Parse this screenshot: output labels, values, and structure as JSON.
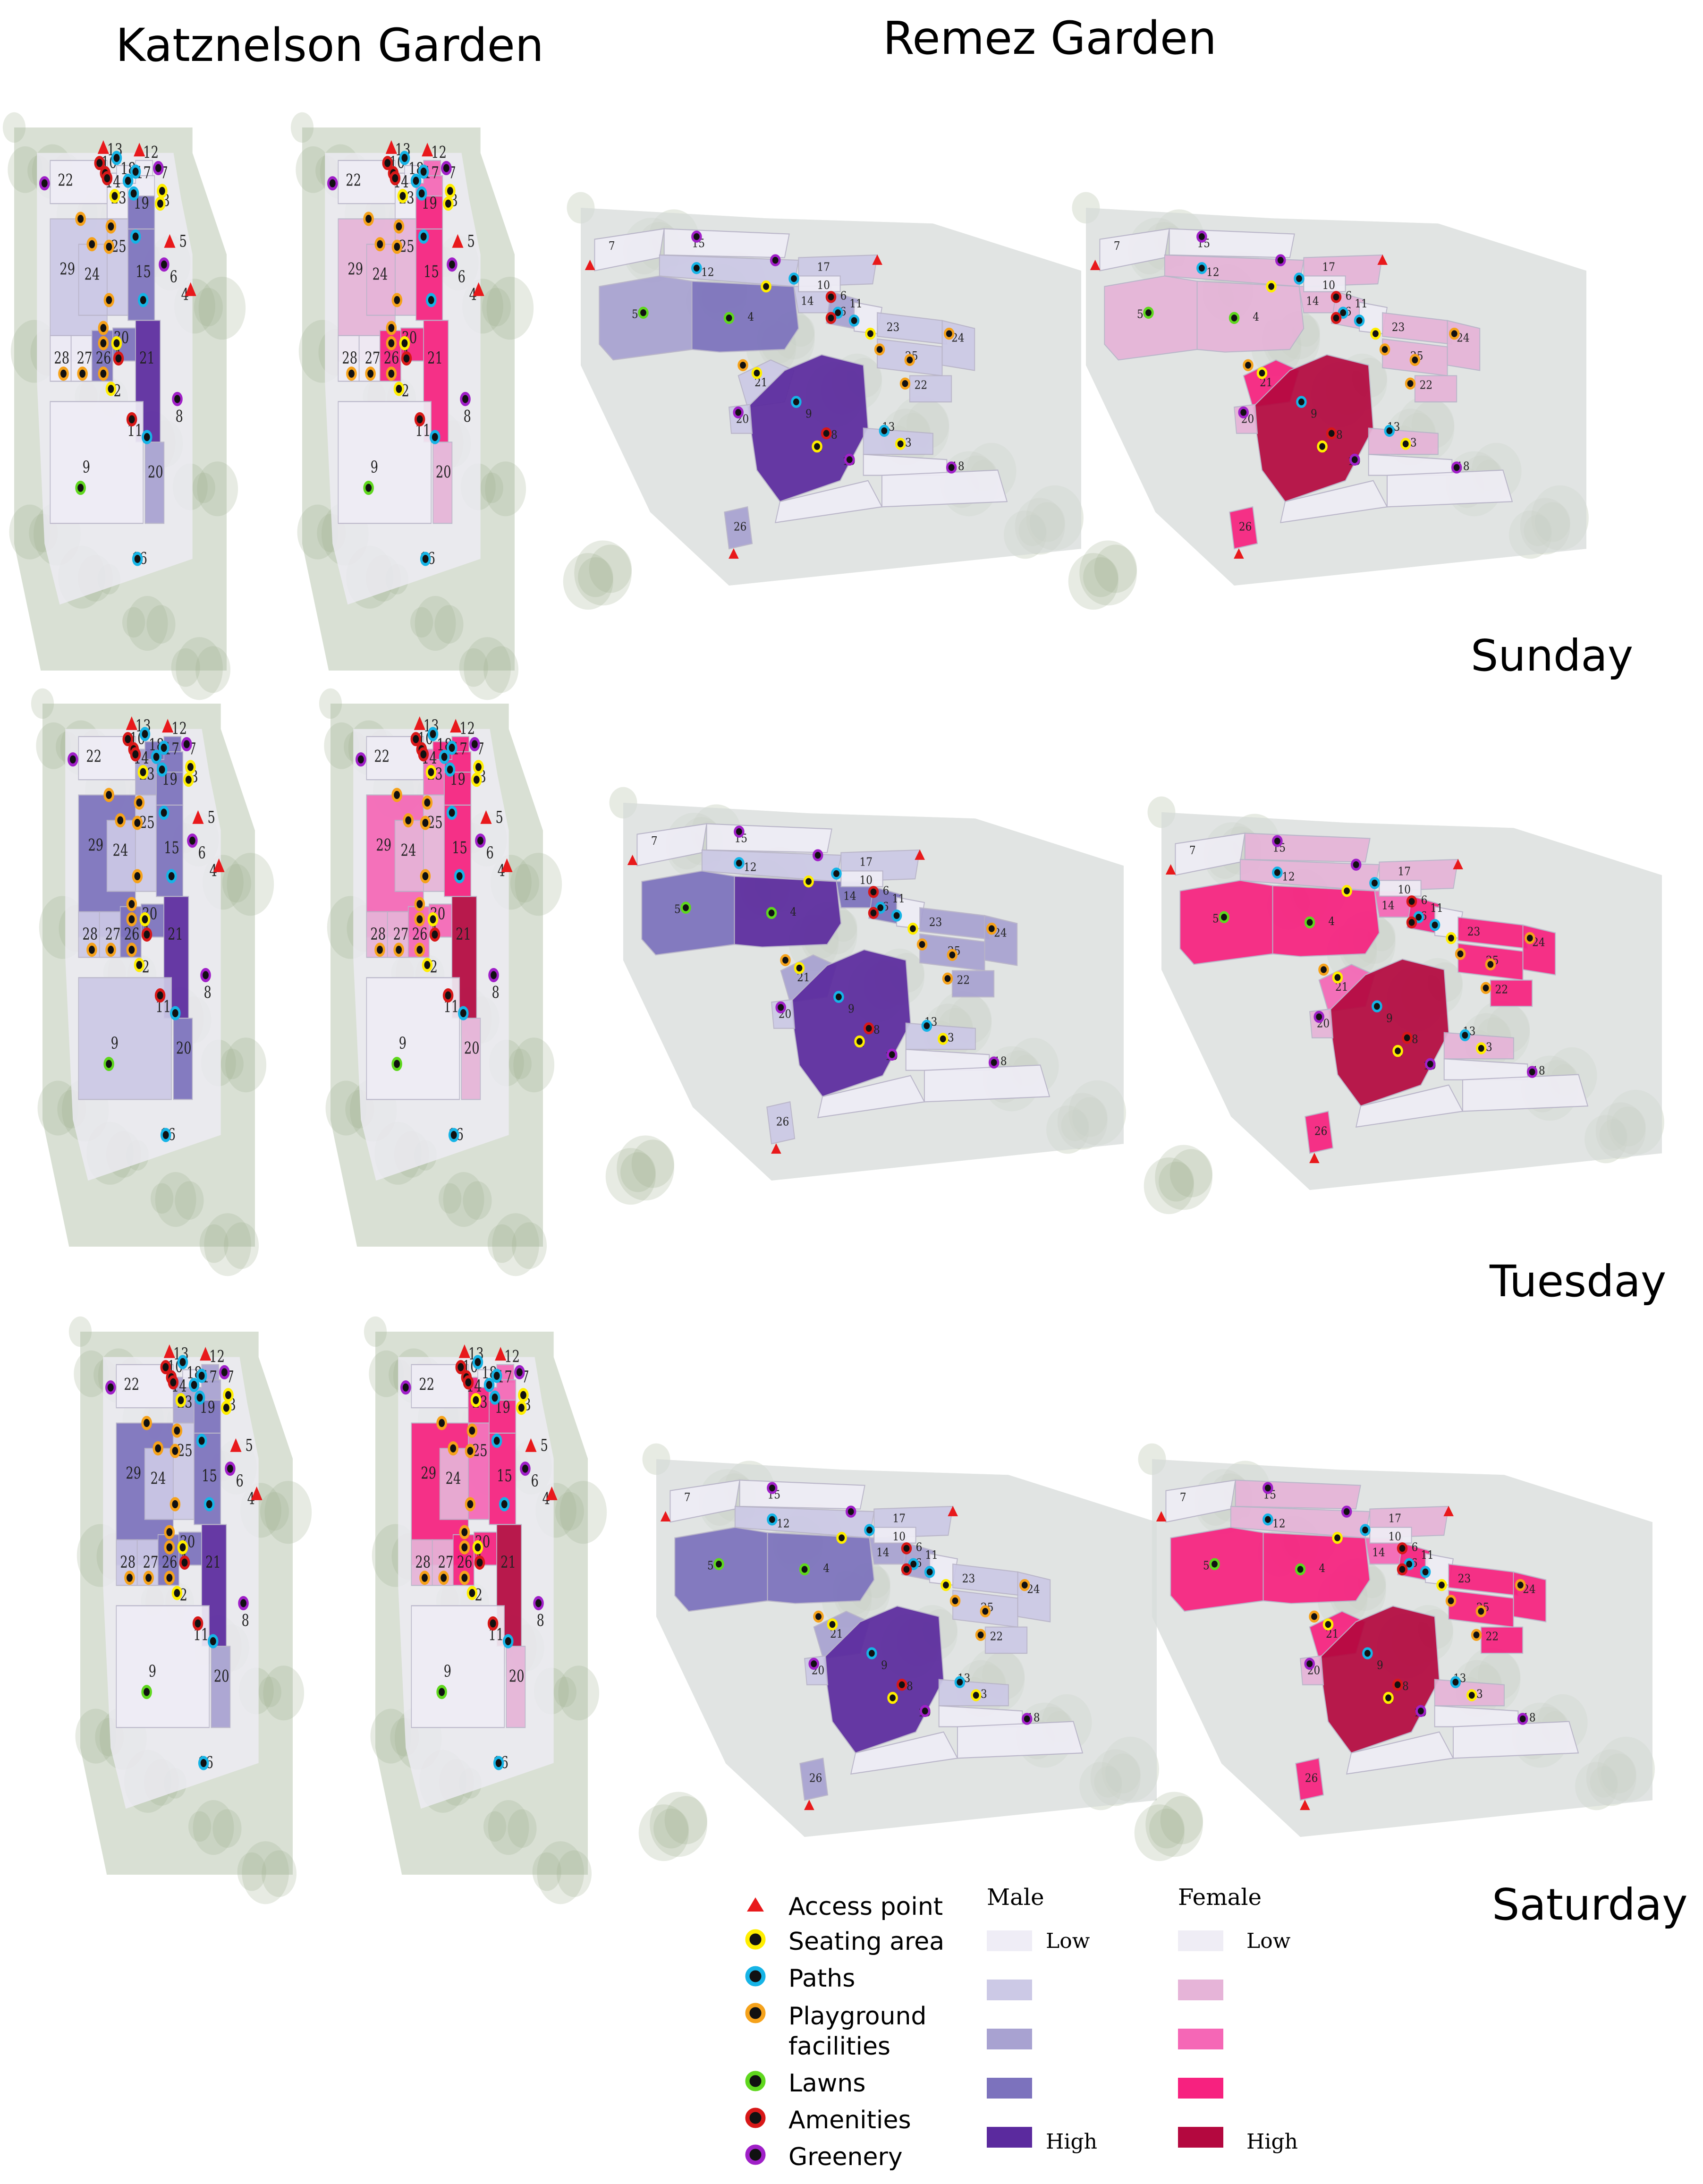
{
  "titles": {
    "katznelson": "Katznelson Garden",
    "remez": "Remez Garden"
  },
  "days": [
    "Sunday",
    "Tuesday",
    "Saturday"
  ],
  "legend": {
    "markers": [
      {
        "label": "Access point",
        "icon": "triangle-icon",
        "color": "#e8191b"
      },
      {
        "label": "Seating area",
        "icon": "dot-icon",
        "color": "#ffee00"
      },
      {
        "label": "Paths",
        "icon": "dot-icon",
        "color": "#16b4e6"
      },
      {
        "label": "Playground facilities",
        "icon": "dot-icon",
        "color": "#f5a21b"
      },
      {
        "label": "Lawns",
        "icon": "dot-icon",
        "color": "#5fd71e"
      },
      {
        "label": "Amenities",
        "icon": "dot-icon",
        "color": "#d81818"
      },
      {
        "label": "Greenery",
        "icon": "dot-icon",
        "color": "#a020c8"
      }
    ],
    "male": {
      "header": "Male",
      "low": "Low",
      "high": "High",
      "colors": [
        "#efedf6",
        "#ccc9e6",
        "#a8a2d1",
        "#7c72bd",
        "#5b2a9e"
      ]
    },
    "female": {
      "header": "Female",
      "low": "Low",
      "high": "High",
      "colors": [
        "#efedf5",
        "#e6b4d8",
        "#f567b6",
        "#f7217f",
        "#b4083f"
      ]
    }
  },
  "k_labels": {
    "z13": "13",
    "z10": "10",
    "z12": "12",
    "z18": "18",
    "z17": "17",
    "z7": "7",
    "z14": "14",
    "z22": "22",
    "z23": "23",
    "z19": "19",
    "z3": "3",
    "z5": "5",
    "z29": "29",
    "z25": "25",
    "z24": "24",
    "z15": "15",
    "z6": "6",
    "z4": "4",
    "z30": "30",
    "z28": "28",
    "z27": "27",
    "z26": "26",
    "z21": "21",
    "z2": "2",
    "z8": "8",
    "z11": "11",
    "z20": "20",
    "z9": "9",
    "z16": "16",
    "z1": "1"
  },
  "r_labels": {
    "z7": "7",
    "z15": "15",
    "z12": "12",
    "z17": "17",
    "z10": "10",
    "z5": "5",
    "z4": "4",
    "z14": "14",
    "z6": "6",
    "z16": "16",
    "z11": "11",
    "z23": "23",
    "z24": "24",
    "z25": "25",
    "z22": "22",
    "z21": "21",
    "z9": "9",
    "z20": "20",
    "z8": "8",
    "z13": "13",
    "z3": "3",
    "z1": "1",
    "z19": "19",
    "z18": "18",
    "z26": "26"
  },
  "density": {
    "katznelson": {
      "sunday": {
        "male": {
          "z29": 1,
          "z24": 1,
          "z25": 1,
          "z26": 3,
          "z30": 3,
          "z15": 3,
          "z19": 3,
          "z21": 4,
          "z20": 2
        },
        "female": {
          "z29": 1,
          "z24": 1,
          "z25": 1,
          "z26": 3,
          "z30": 3,
          "z15": 3,
          "z19": 3,
          "z21": 3,
          "z20": 1,
          "z12": 2,
          "z17": 2
        }
      },
      "tuesday": {
        "male": {
          "z29": 3,
          "z24": 1,
          "z25": 1,
          "z26": 3,
          "z30": 3,
          "z15": 3,
          "z19": 3,
          "z21": 4,
          "z20": 3,
          "z9": 1,
          "z12": 3,
          "z17": 3,
          "z18": 3,
          "z23": 2,
          "z28": 1,
          "z27": 1
        },
        "female": {
          "z29": 2,
          "z24": 1,
          "z25": 1,
          "z26": 2,
          "z30": 2,
          "z15": 3,
          "z19": 3,
          "z21": 4,
          "z20": 1,
          "z12": 3,
          "z17": 3,
          "z18": 3,
          "z23": 2,
          "z28": 1,
          "z27": 1
        }
      },
      "saturday": {
        "male": {
          "z29": 3,
          "z24": 1,
          "z25": 1,
          "z26": 3,
          "z30": 3,
          "z15": 3,
          "z19": 3,
          "z21": 4,
          "z20": 2,
          "z12": 2,
          "z17": 2,
          "z23": 2,
          "z28": 1,
          "z27": 1
        },
        "female": {
          "z29": 3,
          "z24": 1,
          "z25": 2,
          "z26": 3,
          "z30": 3,
          "z15": 3,
          "z19": 3,
          "z21": 4,
          "z20": 1,
          "z12": 2,
          "z17": 2,
          "z23": 3,
          "z28": 1,
          "z27": 1
        }
      }
    },
    "remez": {
      "sunday": {
        "male": {
          "z5": 2,
          "z4": 3,
          "z9": 4,
          "z21": 1,
          "z26": 2,
          "z14": 1,
          "z16": 2,
          "z23": 1,
          "z25": 1,
          "z24": 1,
          "z22": 1,
          "z13": 1,
          "z20": 1,
          "z17": 1,
          "z12": 1
        },
        "female": {
          "z5": 1,
          "z4": 1,
          "z9": 4,
          "z21": 3,
          "z26": 3,
          "z14": 1,
          "z16": 1,
          "z23": 1,
          "z25": 1,
          "z24": 1,
          "z22": 1,
          "z13": 1,
          "z20": 1,
          "z17": 1,
          "z12": 1
        }
      },
      "tuesday": {
        "male": {
          "z5": 3,
          "z4": 4,
          "z9": 4,
          "z21": 2,
          "z26": 1,
          "z14": 3,
          "z16": 3,
          "z23": 2,
          "z25": 2,
          "z24": 2,
          "z22": 2,
          "z13": 1,
          "z20": 1,
          "z17": 1,
          "z12": 1
        },
        "female": {
          "z5": 3,
          "z4": 3,
          "z9": 4,
          "z21": 2,
          "z26": 3,
          "z14": 2,
          "z16": 3,
          "z23": 3,
          "z25": 3,
          "z24": 3,
          "z22": 3,
          "z13": 1,
          "z20": 1,
          "z17": 1,
          "z12": 1,
          "z15": 1
        }
      },
      "saturday": {
        "male": {
          "z5": 3,
          "z4": 3,
          "z9": 4,
          "z21": 2,
          "z26": 2,
          "z14": 2,
          "z16": 2,
          "z23": 1,
          "z25": 1,
          "z24": 1,
          "z22": 1,
          "z13": 1,
          "z20": 1,
          "z17": 1,
          "z12": 1
        },
        "female": {
          "z5": 3,
          "z4": 3,
          "z9": 4,
          "z21": 3,
          "z26": 3,
          "z14": 2,
          "z16": 3,
          "z23": 3,
          "z25": 3,
          "z24": 3,
          "z22": 3,
          "z13": 1,
          "z20": 1,
          "z17": 1,
          "z12": 1,
          "z15": 1
        }
      }
    }
  }
}
